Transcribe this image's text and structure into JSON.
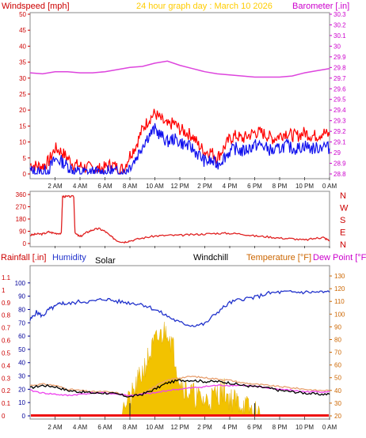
{
  "header": {
    "left_title": "Windspeed [mph]",
    "center_title": "24 hour graph day : March 10 2026",
    "right_title": "Barometer [.in]"
  },
  "colors": {
    "wind_gust": "#ff0000",
    "wind_avg": "#1010ee",
    "barometer": "#dd44dd",
    "direction": "#e02020",
    "humidity": "#2233cc",
    "temperature": "#e8a070",
    "dewpoint": "#ee44ee",
    "windchill": "#000000",
    "solar": "#f2c200",
    "rain": "#ee1111",
    "axis_left": "#cc0000",
    "axis_right": "#cc00cc",
    "axis_hum": "#000099",
    "axis_temp": "#cc6600"
  },
  "chart_data": [
    {
      "type": "line",
      "name": "wind-barometer",
      "x_ticks": [
        "2 AM",
        "4 AM",
        "6 AM",
        "8 AM",
        "10 AM",
        "12 PM",
        "2 PM",
        "4 PM",
        "6 PM",
        "8 PM",
        "10 PM",
        "0 AM"
      ],
      "xlim": [
        0,
        24
      ],
      "ylim": [
        0,
        50
      ],
      "y_ticks": [
        "0",
        "5",
        "10",
        "15",
        "20",
        "25",
        "30",
        "35",
        "40",
        "45",
        "50"
      ],
      "y2lim": [
        28.8,
        30.3
      ],
      "y2_ticks": [
        "28.8",
        "28.9",
        "29",
        "29.1",
        "29.2",
        "29.3",
        "29.4",
        "29.5",
        "29.6",
        "29.7",
        "29.8",
        "29.9",
        "30",
        "30.1",
        "30.2",
        "30.3"
      ],
      "series": [
        {
          "key": "gust",
          "x": [
            0,
            0.5,
            1,
            1.5,
            2,
            2.5,
            3,
            3.5,
            4,
            4.5,
            5,
            5.5,
            6,
            6.5,
            7,
            7.5,
            8,
            8.5,
            9,
            9.5,
            10,
            10.5,
            11,
            11.5,
            12,
            12.5,
            13,
            13.5,
            14,
            14.5,
            15,
            15.5,
            16,
            16.5,
            17,
            17.5,
            18,
            18.5,
            19,
            19.5,
            20,
            20.5,
            21,
            21.5,
            22,
            22.5,
            23,
            23.5,
            24
          ],
          "y": [
            3,
            2.5,
            2.5,
            4,
            8,
            7,
            5,
            3,
            2.5,
            2,
            2,
            1.5,
            2,
            3,
            2,
            1.5,
            6,
            9,
            14,
            17,
            19,
            17,
            15,
            16,
            14,
            13,
            12,
            9,
            7,
            7,
            5,
            8,
            11,
            12,
            11,
            12,
            13,
            13,
            12,
            11,
            12,
            13,
            12,
            12,
            13,
            12,
            12,
            13,
            12
          ]
        },
        {
          "key": "avg",
          "x": [
            0,
            0.5,
            1,
            1.5,
            2,
            2.5,
            3,
            3.5,
            4,
            4.5,
            5,
            5.5,
            6,
            6.5,
            7,
            7.5,
            8,
            8.5,
            9,
            9.5,
            10,
            10.5,
            11,
            11.5,
            12,
            12.5,
            13,
            13.5,
            14,
            14.5,
            15,
            15.5,
            16,
            16.5,
            17,
            17.5,
            18,
            18.5,
            19,
            19.5,
            20,
            20.5,
            21,
            21.5,
            22,
            22.5,
            23,
            23.5,
            24
          ],
          "y": [
            1,
            0.5,
            0.5,
            1.5,
            4.5,
            4,
            2.5,
            1,
            0.5,
            0.5,
            0.5,
            0.3,
            0.5,
            1,
            0.5,
            0.3,
            2.5,
            5,
            9,
            12,
            14,
            12,
            10,
            11,
            10,
            9,
            8,
            6,
            4,
            4,
            3,
            5,
            7,
            8,
            7,
            8,
            9,
            9,
            8,
            7,
            8,
            9,
            8,
            8,
            9,
            8,
            8,
            9,
            8
          ]
        },
        {
          "key": "barometer",
          "x": [
            0,
            1,
            2,
            3,
            4,
            5,
            6,
            7,
            8,
            9,
            10,
            11,
            12,
            13,
            14,
            15,
            16,
            17,
            18,
            19,
            20,
            21,
            22,
            23,
            24
          ],
          "y": [
            29.75,
            29.74,
            29.76,
            29.76,
            29.75,
            29.75,
            29.76,
            29.78,
            29.8,
            29.81,
            29.84,
            29.86,
            29.82,
            29.79,
            29.76,
            29.74,
            29.73,
            29.72,
            29.71,
            29.71,
            29.71,
            29.72,
            29.75,
            29.77,
            29.79
          ]
        }
      ]
    },
    {
      "type": "line",
      "name": "wind-direction",
      "x_ticks": [
        "2 AM",
        "4 AM",
        "6 AM",
        "8 AM",
        "10 AM",
        "12 PM",
        "2 PM",
        "4 PM",
        "6 PM",
        "8 PM",
        "10 PM",
        "0 AM"
      ],
      "xlim": [
        0,
        24
      ],
      "ylim": [
        0,
        360
      ],
      "y_ticks": [
        "0",
        "90",
        "180",
        "270",
        "360"
      ],
      "compass": [
        "N",
        "W",
        "S",
        "E",
        "N"
      ],
      "series": [
        {
          "key": "direction",
          "x": [
            0,
            0.5,
            1,
            1.5,
            2,
            2.5,
            2.6,
            3,
            3.5,
            3.6,
            4,
            4.5,
            5,
            5.5,
            6,
            6.5,
            7,
            7.5,
            8,
            9,
            10,
            11,
            12,
            13,
            14,
            15,
            16,
            17,
            18,
            19,
            20,
            21,
            22,
            23,
            23.5,
            24
          ],
          "y": [
            60,
            70,
            70,
            85,
            75,
            75,
            345,
            345,
            345,
            75,
            50,
            80,
            100,
            110,
            90,
            50,
            20,
            10,
            20,
            40,
            55,
            60,
            60,
            65,
            70,
            75,
            75,
            70,
            55,
            50,
            40,
            35,
            25,
            40,
            45,
            20
          ]
        }
      ]
    },
    {
      "type": "line",
      "name": "rain-humidity-temperature",
      "x_ticks": [
        "2 AM",
        "4 AM",
        "6 AM",
        "8 AM",
        "10 AM",
        "12 PM",
        "2 PM",
        "4 PM",
        "6 PM",
        "8 PM",
        "10 PM",
        "0 AM"
      ],
      "xlim": [
        0,
        24
      ],
      "rain_ticks": [
        "0",
        "0.1",
        "0.2",
        "0.3",
        "0.4",
        "0.5",
        "0.6",
        "0.7",
        "0.8",
        "0.9",
        "1",
        "1.1"
      ],
      "hum_ticks": [
        "0",
        "10",
        "20",
        "30",
        "40",
        "50",
        "60",
        "70",
        "80",
        "90",
        "100"
      ],
      "temp_ticks": [
        "20",
        "30",
        "40",
        "50",
        "60",
        "70",
        "80",
        "90",
        "100",
        "110",
        "120",
        "130"
      ],
      "hum_lim": [
        0,
        110
      ],
      "temp_lim": [
        20,
        135
      ],
      "series": [
        {
          "key": "humidity",
          "x": [
            0,
            0.5,
            1,
            1.5,
            2,
            2.5,
            3,
            4,
            5,
            6,
            7,
            8,
            9,
            10,
            11,
            12,
            13,
            14,
            15,
            16,
            17,
            18,
            19,
            20,
            21,
            22,
            23,
            24
          ],
          "y": [
            72,
            78,
            75,
            80,
            82,
            85,
            84,
            86,
            86,
            88,
            86,
            85,
            84,
            80,
            75,
            70,
            68,
            69,
            78,
            85,
            88,
            89,
            92,
            93,
            93,
            93,
            93,
            93
          ]
        },
        {
          "key": "temperature",
          "x": [
            0,
            1,
            2,
            3,
            4,
            5,
            6,
            7,
            8,
            9,
            10,
            11,
            12,
            13,
            14,
            15,
            16,
            17,
            18,
            19,
            20,
            21,
            22,
            23,
            24
          ],
          "y": [
            44,
            45,
            44,
            41,
            40,
            39,
            39,
            38,
            35,
            38,
            43,
            48,
            50,
            51,
            50,
            49,
            48,
            46,
            45,
            44,
            43,
            42,
            41,
            40,
            40
          ]
        },
        {
          "key": "windchill",
          "x": [
            0,
            1,
            2,
            3,
            4,
            5,
            6,
            7,
            8,
            9,
            10,
            11,
            12,
            13,
            14,
            15,
            16,
            17,
            18,
            19,
            20,
            21,
            22,
            23,
            24
          ],
          "y": [
            42,
            44,
            43,
            40,
            39,
            38,
            38,
            37,
            35,
            37,
            41,
            46,
            48,
            48,
            47,
            47,
            46,
            44,
            43,
            42,
            40,
            39,
            38,
            37,
            37
          ]
        },
        {
          "key": "dewpoint",
          "x": [
            0,
            1,
            2,
            3,
            4,
            5,
            6,
            7,
            8,
            9,
            10,
            11,
            12,
            13,
            14,
            15,
            16,
            17,
            18,
            19,
            20,
            21,
            22,
            23,
            24
          ],
          "y": [
            40,
            38,
            37,
            36,
            37,
            38,
            38,
            37,
            36,
            37,
            38,
            40,
            41,
            42,
            43,
            44,
            44,
            44,
            43,
            42,
            41,
            40,
            39,
            39,
            39
          ]
        },
        {
          "key": "solar",
          "x": [
            7,
            8,
            8.5,
            9,
            9.5,
            10,
            10.5,
            11,
            11.5,
            12,
            12.5,
            13,
            13.5,
            14,
            14.5,
            15,
            15.5,
            16,
            16.5,
            17,
            17.5,
            18,
            18.5
          ],
          "y": [
            0.02,
            0.1,
            0.2,
            0.3,
            0.4,
            0.5,
            0.55,
            0.6,
            0.45,
            0.25,
            0.18,
            0.15,
            0.12,
            0.1,
            0.12,
            0.15,
            0.18,
            0.12,
            0.1,
            0.08,
            0.05,
            0.02,
            0
          ]
        }
      ]
    }
  ],
  "mid_labels": {
    "left": "Rainfall [.in]",
    "humidity": "Humidity",
    "solar": "Solar",
    "windchill": "Windchill",
    "temp": "Temperature [°F]",
    "dew": "Dew Point [°F]"
  }
}
